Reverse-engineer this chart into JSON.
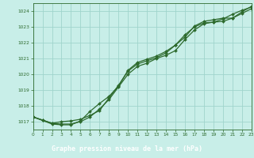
{
  "title": "Graphe pression niveau de la mer (hPa)",
  "background_color": "#c8eee8",
  "footer_color": "#2d6a2d",
  "footer_text_color": "#ffffff",
  "grid_color": "#a0d4cc",
  "line_color": "#2d6a2d",
  "x_min": 0,
  "x_max": 23,
  "y_min": 1016.5,
  "y_max": 1024.5,
  "y_ticks": [
    1017,
    1018,
    1019,
    1020,
    1021,
    1022,
    1023,
    1024
  ],
  "x_ticks": [
    0,
    1,
    2,
    3,
    4,
    5,
    6,
    7,
    8,
    9,
    10,
    11,
    12,
    13,
    14,
    15,
    16,
    17,
    18,
    19,
    20,
    21,
    22,
    23
  ],
  "series1": {
    "x": [
      0,
      1,
      2,
      3,
      4,
      5,
      6,
      7,
      8,
      9,
      10,
      11,
      12,
      13,
      14,
      15,
      16,
      17,
      18,
      19,
      20,
      21,
      22,
      23
    ],
    "y": [
      1017.3,
      1017.1,
      1016.9,
      1016.85,
      1016.85,
      1017.0,
      1017.3,
      1017.8,
      1018.4,
      1019.2,
      1020.0,
      1020.5,
      1020.7,
      1021.0,
      1021.2,
      1021.5,
      1022.2,
      1022.8,
      1023.2,
      1023.3,
      1023.5,
      1023.8,
      1024.05,
      1024.25
    ]
  },
  "series2": {
    "x": [
      0,
      1,
      2,
      3,
      4,
      5,
      6,
      7,
      8,
      9,
      10,
      11,
      12,
      13,
      14,
      15,
      16,
      17,
      18,
      19,
      20,
      21,
      22,
      23
    ],
    "y": [
      1017.3,
      1017.1,
      1016.9,
      1017.0,
      1017.05,
      1017.15,
      1017.4,
      1017.7,
      1018.5,
      1019.3,
      1020.2,
      1020.65,
      1020.85,
      1021.05,
      1021.35,
      1021.85,
      1022.5,
      1023.0,
      1023.25,
      1023.3,
      1023.35,
      1023.55,
      1023.85,
      1024.15
    ]
  },
  "series3": {
    "x": [
      0,
      2,
      3,
      4,
      5,
      6,
      7,
      8,
      9,
      10,
      11,
      12,
      13,
      14,
      15,
      16,
      17,
      18,
      19,
      20,
      21,
      22,
      23
    ],
    "y": [
      1017.3,
      1016.85,
      1016.8,
      1016.8,
      1017.05,
      1017.65,
      1018.15,
      1018.6,
      1019.25,
      1020.25,
      1020.75,
      1020.95,
      1021.15,
      1021.45,
      1021.85,
      1022.35,
      1023.05,
      1023.35,
      1023.45,
      1023.55,
      1023.55,
      1023.95,
      1024.3
    ]
  }
}
